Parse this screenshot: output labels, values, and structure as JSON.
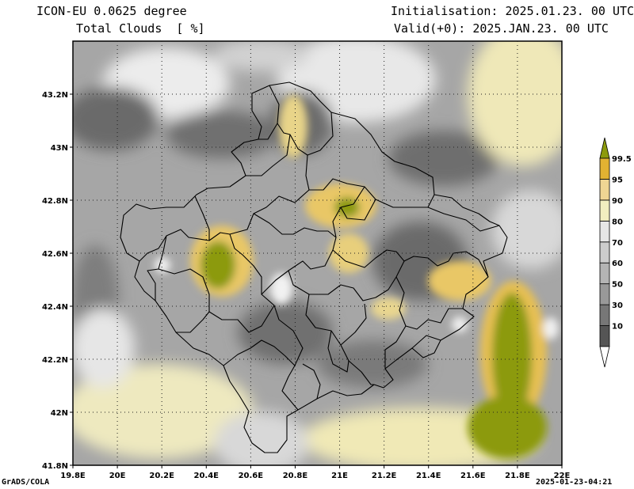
{
  "header": {
    "model": "ICON-EU 0.0625 degree",
    "field": "Total Clouds  [ %]",
    "init": "Initialisation: 2025.01.23. 00 UTC",
    "valid": "Valid(+0): 2025.JAN.23. 00 UTC"
  },
  "footer": {
    "left": "GrADS/COLA",
    "right": "2025-01-23-04:21"
  },
  "map": {
    "lon_range": [
      19.8,
      22.0
    ],
    "lat_range": [
      41.8,
      43.4
    ],
    "lon_ticks": [
      {
        "v": 19.8,
        "label": "19.8E"
      },
      {
        "v": 20.0,
        "label": "20E"
      },
      {
        "v": 20.2,
        "label": "20.2E"
      },
      {
        "v": 20.4,
        "label": "20.4E"
      },
      {
        "v": 20.6,
        "label": "20.6E"
      },
      {
        "v": 20.8,
        "label": "20.8E"
      },
      {
        "v": 21.0,
        "label": "21E"
      },
      {
        "v": 21.2,
        "label": "21.2E"
      },
      {
        "v": 21.4,
        "label": "21.4E"
      },
      {
        "v": 21.6,
        "label": "21.6E"
      },
      {
        "v": 21.8,
        "label": "21.8E"
      },
      {
        "v": 22.0,
        "label": "22E"
      }
    ],
    "lat_ticks": [
      {
        "v": 41.8,
        "label": "41.8N"
      },
      {
        "v": 42.0,
        "label": "42N"
      },
      {
        "v": 42.2,
        "label": "42.2N"
      },
      {
        "v": 42.4,
        "label": "42.4N"
      },
      {
        "v": 42.6,
        "label": "42.6N"
      },
      {
        "v": 42.8,
        "label": "42.8N"
      },
      {
        "v": 43.0,
        "label": "43N"
      },
      {
        "v": 43.2,
        "label": "43.2N"
      }
    ],
    "grid": true
  },
  "colorbar": {
    "levels": [
      {
        "label": "10",
        "color": "#555555"
      },
      {
        "label": "30",
        "color": "#777777"
      },
      {
        "label": "50",
        "color": "#999999"
      },
      {
        "label": "60",
        "color": "#b4b4b4"
      },
      {
        "label": "70",
        "color": "#cccccc"
      },
      {
        "label": "80",
        "color": "#e6e6e6"
      },
      {
        "label": "90",
        "color": "#f2eec0"
      },
      {
        "label": "95",
        "color": "#efd593"
      },
      {
        "label": "99.5",
        "color": "#e2b232"
      }
    ],
    "below_color": "#ffffff",
    "above_color": "#8c9a0c"
  }
}
